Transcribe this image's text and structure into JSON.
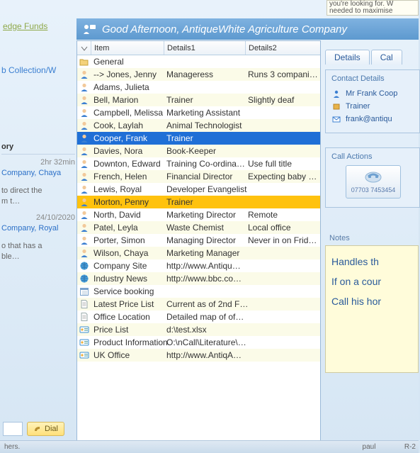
{
  "header": {
    "greeting": "Good Afternoon, AntiqueWhite Agriculture Company",
    "bg_from": "#7fb2e0",
    "bg_to": "#5d99cf"
  },
  "top_note": {
    "line1": "you're looking for. W",
    "line2": "needed to maximise"
  },
  "left": {
    "hedge": "edge Funds",
    "hedge_sub": "",
    "collection": "b Collection/W"
  },
  "ghost_left": {
    "heading": "ory",
    "time1": "2hr 32min",
    "link1": "Company, Chaya",
    "note1a": "to direct the",
    "note1b": "m t…",
    "date2": "24/10/2020",
    "link2": "Company, Royal",
    "note2a": "o that has a",
    "note2b": "ble…"
  },
  "columns": {
    "c0": "",
    "c1": "Item",
    "c2": "Details1",
    "c3": "Details2"
  },
  "rows": [
    {
      "icon": "folder",
      "item": "General",
      "d1": "",
      "d2": "",
      "state": "z0"
    },
    {
      "icon": "person",
      "item": "--> Jones, Jenny",
      "d1": "Manageress",
      "d2": "Runs 3 compani…",
      "state": "z1"
    },
    {
      "icon": "person",
      "item": "Adams, Julieta",
      "d1": "",
      "d2": "",
      "state": "z0"
    },
    {
      "icon": "person",
      "item": "Bell, Marion",
      "d1": "Trainer",
      "d2": "Slightly deaf",
      "state": "z1"
    },
    {
      "icon": "person",
      "item": "Campbell, Melissa",
      "d1": "Marketing Assistant",
      "d2": "",
      "state": "z0"
    },
    {
      "icon": "person",
      "item": "Cook, Laylah",
      "d1": "Animal Technologist",
      "d2": "",
      "state": "z1"
    },
    {
      "icon": "person",
      "item": "Cooper, Frank",
      "d1": "Trainer",
      "d2": "",
      "state": "sel"
    },
    {
      "icon": "person",
      "item": "Davies, Nora",
      "d1": "Book-Keeper",
      "d2": "",
      "state": "z1"
    },
    {
      "icon": "person",
      "item": "Downton, Edward",
      "d1": "Training Co-ordina…",
      "d2": "Use full title",
      "state": "z0"
    },
    {
      "icon": "person",
      "item": "French, Helen",
      "d1": "Financial Director",
      "d2": "Expecting baby …",
      "state": "z1"
    },
    {
      "icon": "person",
      "item": "Lewis, Royal",
      "d1": "Developer Evangelist",
      "d2": "",
      "state": "z0"
    },
    {
      "icon": "person",
      "item": "Morton, Penny",
      "d1": "Trainer",
      "d2": "",
      "state": "hl"
    },
    {
      "icon": "person",
      "item": "North, David",
      "d1": "Marketing Director",
      "d2": "Remote",
      "state": "z0"
    },
    {
      "icon": "person",
      "item": "Patel, Leyla",
      "d1": "Waste Chemist",
      "d2": "Local office",
      "state": "z1"
    },
    {
      "icon": "person",
      "item": "Porter, Simon",
      "d1": "Managing Director",
      "d2": "Never in on Frid…",
      "state": "z0"
    },
    {
      "icon": "person",
      "item": "Wilson, Chaya",
      "d1": "Marketing Manager",
      "d2": "",
      "state": "z1"
    },
    {
      "icon": "globe",
      "item": "Company Site",
      "d1": "http://www.Antiqu…",
      "d2": "",
      "state": "z0"
    },
    {
      "icon": "globe",
      "item": "Industry News",
      "d1": "http://www.bbc.co…",
      "d2": "",
      "state": "z1"
    },
    {
      "icon": "cal",
      "item": "Service booking",
      "d1": "",
      "d2": "",
      "state": "z0"
    },
    {
      "icon": "doc",
      "item": "Latest Price List",
      "d1": "Current as of 2nd F…",
      "d2": "",
      "state": "z1"
    },
    {
      "icon": "doc",
      "item": "Office Location",
      "d1": "Detailed map of of…",
      "d2": "",
      "state": "z0"
    },
    {
      "icon": "card",
      "item": "Price List",
      "d1": "d:\\test.xlsx",
      "d2": "",
      "state": "z1"
    },
    {
      "icon": "card",
      "item": "Product Information",
      "d1": "O:\\nCall\\Literature\\…",
      "d2": "",
      "state": "z0"
    },
    {
      "icon": "card",
      "item": "UK Office",
      "d1": "http://www.AntiqA…",
      "d2": "",
      "state": "z1"
    }
  ],
  "tabs": {
    "t1": "Details",
    "t2": "Cal"
  },
  "contact": {
    "box_title": "Contact Details",
    "name": "Mr Frank Coop",
    "role": "Trainer",
    "email": "frank@antiqu"
  },
  "actions": {
    "box_title": "Call Actions",
    "phone": "07703 7453454"
  },
  "notes": {
    "title": "Notes",
    "l1": "Handles th",
    "l2": "If on a cour",
    "l3": "Call his hor"
  },
  "bottom": {
    "dial": "Dial",
    "left": "hers.",
    "center": "paul",
    "right": "R-2"
  },
  "colors": {
    "sel_bg": "#1f6fd6",
    "hl_bg": "#ffc20e",
    "alt_bg": "#fbfbe8"
  }
}
